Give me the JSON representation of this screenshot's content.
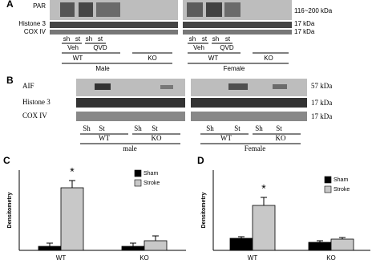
{
  "panel_a": {
    "label": "A",
    "rows": [
      "PAR",
      "Histone 3",
      "COX IV"
    ],
    "sizes": [
      "116~200 kDa",
      "17 kDa",
      "17 kDa"
    ],
    "left": {
      "lanes": [
        "sh",
        "st",
        "sh",
        "st"
      ],
      "treatments": [
        "Veh",
        "QVD"
      ],
      "genotypes": [
        "WT",
        "KO"
      ],
      "sex": "Male"
    },
    "right": {
      "lanes": [
        "sh",
        "st",
        "sh",
        "st"
      ],
      "treatments": [
        "Veh",
        "QVD"
      ],
      "genotypes": [
        "WT",
        "KO"
      ],
      "sex": "Female"
    }
  },
  "panel_b": {
    "label": "B",
    "rows": [
      "AIF",
      "Histone 3",
      "COX IV"
    ],
    "sizes": [
      "57 kDa",
      "17 kDa",
      "17 kDa"
    ],
    "left": {
      "lanes": [
        "Sh",
        "St",
        "Sh",
        "St"
      ],
      "genotypes": [
        "WT",
        "KO"
      ],
      "sex": "male"
    },
    "right": {
      "lanes": [
        "Sh",
        "St",
        "Sh",
        "St"
      ],
      "genotypes": [
        "WT",
        "KO"
      ],
      "sex": "Female"
    }
  },
  "chart_data": [
    {
      "type": "bar",
      "panel": "C",
      "ylabel": "Densitometry",
      "categories": [
        "WT",
        "KO"
      ],
      "ylim": [
        0,
        1
      ],
      "annotation": "*",
      "legend": "top-right",
      "series": [
        {
          "name": "Sham",
          "color": "#000000",
          "values": [
            0.05,
            0.05
          ],
          "errors": [
            0.04,
            0.04
          ]
        },
        {
          "name": "Stroke",
          "color": "#c8c8c8",
          "values": [
            0.78,
            0.12
          ],
          "errors": [
            0.09,
            0.06
          ]
        }
      ]
    },
    {
      "type": "bar",
      "panel": "D",
      "ylabel": "Densitometry",
      "categories": [
        "WT",
        "KO"
      ],
      "ylim": [
        0,
        1
      ],
      "annotation": "*",
      "legend": "top-right",
      "series": [
        {
          "name": "Sham",
          "color": "#000000",
          "values": [
            0.15,
            0.1
          ],
          "errors": [
            0.02,
            0.02
          ]
        },
        {
          "name": "Stroke",
          "color": "#c8c8c8",
          "values": [
            0.56,
            0.14
          ],
          "errors": [
            0.1,
            0.02
          ]
        }
      ]
    }
  ]
}
